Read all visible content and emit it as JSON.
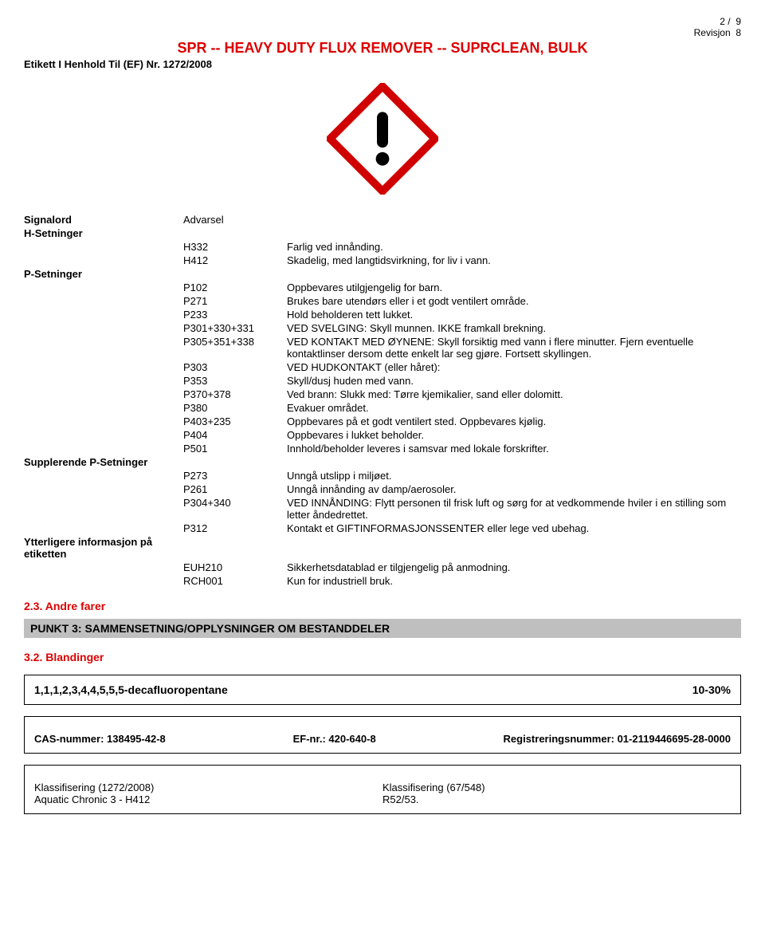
{
  "page": {
    "num": "2",
    "sep": "/",
    "total": "9",
    "revision_label": "Revisjon",
    "revision_num": "8"
  },
  "product_title": "SPR -- HEAVY DUTY FLUX REMOVER -- SUPRCLEAN, BULK",
  "label_ref": "Etikett I Henhold Til (EF) Nr. 1272/2008",
  "pictogram": {
    "border_color": "#d00000",
    "fill": "#ffffff",
    "mark_color": "#000000"
  },
  "signal": {
    "label": "Signalord",
    "value": "Advarsel"
  },
  "h_section": {
    "label": "H-Setninger",
    "items": [
      {
        "code": "H332",
        "text": "Farlig ved innånding."
      },
      {
        "code": "H412",
        "text": "Skadelig, med langtidsvirkning, for liv i vann."
      }
    ]
  },
  "p_section": {
    "label": "P-Setninger",
    "items": [
      {
        "code": "P102",
        "text": "Oppbevares utilgjengelig for barn."
      },
      {
        "code": "P271",
        "text": "Brukes bare utendørs eller i et godt ventilert område."
      },
      {
        "code": "P233",
        "text": "Hold beholderen tett lukket."
      },
      {
        "code": "P301+330+331",
        "text": "VED SVELGING: Skyll munnen. IKKE framkall brekning."
      },
      {
        "code": "P305+351+338",
        "text": "VED KONTAKT MED ØYNENE: Skyll forsiktig med vann i flere minutter. Fjern eventuelle kontaktlinser dersom dette enkelt lar seg gjøre. Fortsett skyllingen."
      },
      {
        "code": "P303",
        "text": "VED HUDKONTAKT (eller håret):"
      },
      {
        "code": "P353",
        "text": "Skyll/dusj huden med vann."
      },
      {
        "code": "P370+378",
        "text": "Ved brann: Slukk med: Tørre kjemikalier, sand eller dolomitt."
      },
      {
        "code": "P380",
        "text": "Evakuer området."
      },
      {
        "code": "P403+235",
        "text": "Oppbevares på et godt ventilert sted. Oppbevares kjølig."
      },
      {
        "code": "P404",
        "text": "Oppbevares i lukket beholder."
      },
      {
        "code": "P501",
        "text": "Innhold/beholder leveres i samsvar med lokale forskrifter."
      }
    ]
  },
  "supp_section": {
    "label": "Supplerende P-Setninger",
    "items": [
      {
        "code": "P273",
        "text": "Unngå utslipp i miljøet."
      },
      {
        "code": "P261",
        "text": "Unngå innånding av damp/aerosoler."
      },
      {
        "code": "P304+340",
        "text": "VED INNÅNDING: Flytt personen til frisk luft og sørg for at vedkommende hviler i en stilling som letter åndedrettet."
      },
      {
        "code": "P312",
        "text": "Kontakt et GIFTINFORMASJONSSENTER eller lege ved ubehag."
      }
    ]
  },
  "extra_section": {
    "label": "Ytterligere informasjon på etiketten",
    "items": [
      {
        "code": "EUH210",
        "text": "Sikkerhetsdatablad er tilgjengelig på anmodning."
      },
      {
        "code": "RCH001",
        "text": "Kun for industriell bruk."
      }
    ]
  },
  "sec23": "2.3. Andre farer",
  "punkt3": "PUNKT 3: SAMMENSETNING/OPPLYSNINGER OM BESTANDDELER",
  "sec32": "3.2. Blandinger",
  "box1": {
    "name": "1,1,1,2,3,4,4,5,5,5-decafluoropentane",
    "pct": "10-30%"
  },
  "box2": {
    "cas_label": "CAS-nummer:",
    "cas": "138495-42-8",
    "ef_label": "EF-nr.:",
    "ef": "420-640-8",
    "reg_label": "Registreringsnummer:",
    "reg": "01-2119446695-28-0000"
  },
  "box3": {
    "c1_label": "Klassifisering (1272/2008)",
    "c1_val": "Aquatic Chronic 3 - H412",
    "c2_label": "Klassifisering (67/548)",
    "c2_val": "R52/53."
  }
}
